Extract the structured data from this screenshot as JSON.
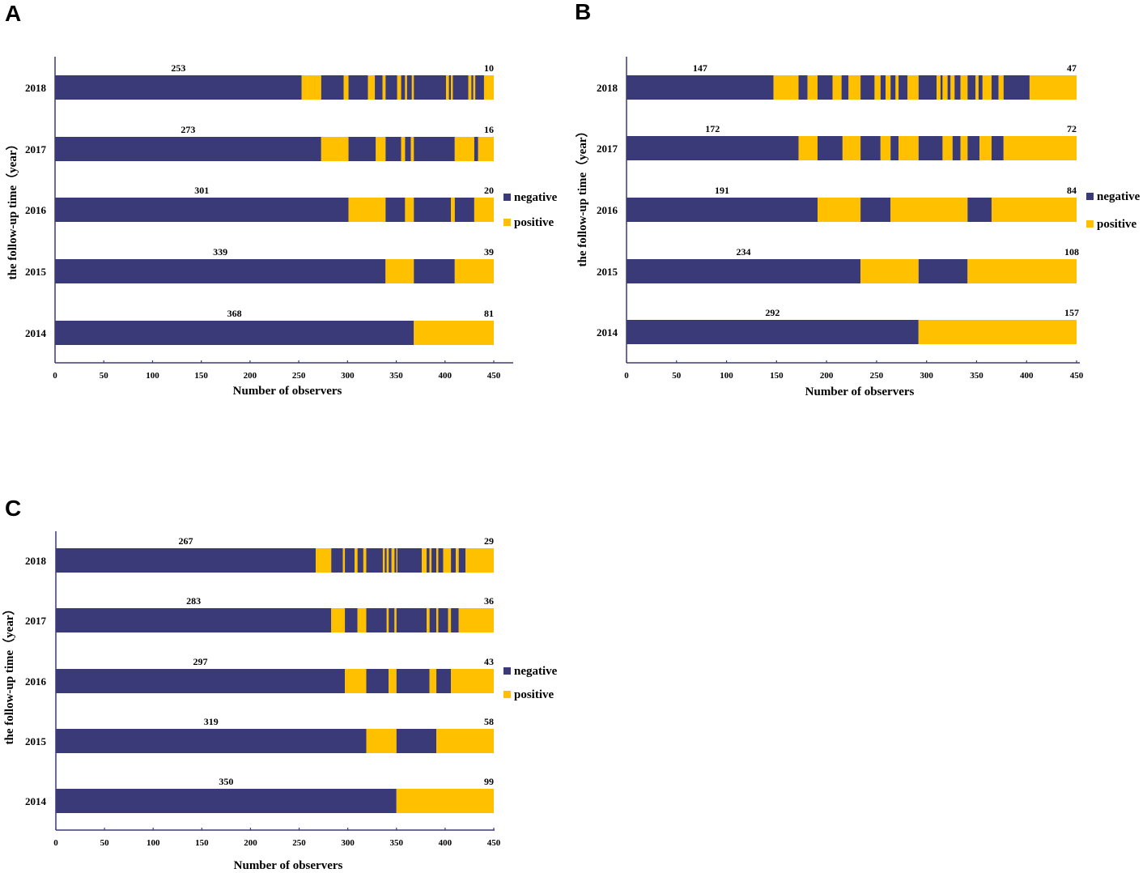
{
  "chart_data": [
    {
      "panel": "A",
      "type": "bar",
      "orientation": "horizontal",
      "stacked": true,
      "xlabel": "Number of observers",
      "ylabel": "the follow-up time（year）",
      "xlim": [
        0,
        450
      ],
      "xticks": [
        0,
        50,
        100,
        150,
        200,
        250,
        300,
        350,
        400,
        450
      ],
      "categories": [
        "2018",
        "2017",
        "2016",
        "2015",
        "2014"
      ],
      "legend": [
        "negative",
        "positive"
      ],
      "legend_position": "right",
      "colors": {
        "negative": "#3b3a78",
        "positive": "#ffc000"
      },
      "rows": [
        {
          "year": "2018",
          "negative_label": "253",
          "positive_label": "10",
          "segments": [
            [
              0,
              253,
              "neg"
            ],
            [
              253,
              273,
              "pos"
            ],
            [
              273,
              296,
              "neg"
            ],
            [
              296,
              301,
              "pos"
            ],
            [
              301,
              321,
              "neg"
            ],
            [
              321,
              328,
              "pos"
            ],
            [
              328,
              336,
              "neg"
            ],
            [
              336,
              339,
              "pos"
            ],
            [
              339,
              351,
              "neg"
            ],
            [
              351,
              355,
              "pos"
            ],
            [
              355,
              359,
              "neg"
            ],
            [
              359,
              361,
              "pos"
            ],
            [
              361,
              366,
              "neg"
            ],
            [
              366,
              368,
              "pos"
            ],
            [
              368,
              401,
              "neg"
            ],
            [
              401,
              404,
              "pos"
            ],
            [
              404,
              406,
              "neg"
            ],
            [
              406,
              408,
              "pos"
            ],
            [
              408,
              424,
              "neg"
            ],
            [
              424,
              427,
              "pos"
            ],
            [
              427,
              429,
              "neg"
            ],
            [
              429,
              431,
              "pos"
            ],
            [
              431,
              440,
              "neg"
            ],
            [
              440,
              450,
              "pos"
            ]
          ]
        },
        {
          "year": "2017",
          "negative_label": "273",
          "positive_label": "16",
          "segments": [
            [
              0,
              273,
              "neg"
            ],
            [
              273,
              301,
              "pos"
            ],
            [
              301,
              329,
              "neg"
            ],
            [
              329,
              339,
              "pos"
            ],
            [
              339,
              355,
              "neg"
            ],
            [
              355,
              359,
              "pos"
            ],
            [
              359,
              365,
              "neg"
            ],
            [
              365,
              368,
              "pos"
            ],
            [
              368,
              410,
              "neg"
            ],
            [
              410,
              430,
              "pos"
            ],
            [
              430,
              434,
              "neg"
            ],
            [
              434,
              450,
              "pos"
            ]
          ]
        },
        {
          "year": "2016",
          "negative_label": "301",
          "positive_label": "20",
          "segments": [
            [
              0,
              301,
              "neg"
            ],
            [
              301,
              339,
              "pos"
            ],
            [
              339,
              359,
              "neg"
            ],
            [
              359,
              368,
              "pos"
            ],
            [
              368,
              406,
              "neg"
            ],
            [
              406,
              410,
              "pos"
            ],
            [
              410,
              430,
              "neg"
            ],
            [
              430,
              450,
              "pos"
            ]
          ]
        },
        {
          "year": "2015",
          "negative_label": "339",
          "positive_label": "39",
          "segments": [
            [
              0,
              339,
              "neg"
            ],
            [
              339,
              368,
              "pos"
            ],
            [
              368,
              410,
              "neg"
            ],
            [
              410,
              450,
              "pos"
            ]
          ]
        },
        {
          "year": "2014",
          "negative_label": "368",
          "positive_label": "81",
          "segments": [
            [
              0,
              368,
              "neg"
            ],
            [
              368,
              450,
              "pos"
            ]
          ]
        }
      ]
    },
    {
      "panel": "B",
      "type": "bar",
      "orientation": "horizontal",
      "stacked": true,
      "xlabel": "Number of observers",
      "ylabel": "the follow-up time（year）",
      "xlim": [
        0,
        450
      ],
      "xticks": [
        0,
        50,
        100,
        150,
        200,
        250,
        300,
        350,
        400,
        450
      ],
      "categories": [
        "2018",
        "2017",
        "2016",
        "2015",
        "2014"
      ],
      "legend": [
        "negative",
        "positive"
      ],
      "legend_position": "right",
      "colors": {
        "negative": "#3b3a78",
        "positive": "#ffc000"
      },
      "rows": [
        {
          "year": "2018",
          "negative_label": "147",
          "positive_label": "47",
          "segments": [
            [
              0,
              147,
              "neg"
            ],
            [
              147,
              172,
              "pos"
            ],
            [
              172,
              181,
              "neg"
            ],
            [
              181,
              191,
              "pos"
            ],
            [
              191,
              206,
              "neg"
            ],
            [
              206,
              215,
              "pos"
            ],
            [
              215,
              222,
              "neg"
            ],
            [
              222,
              234,
              "pos"
            ],
            [
              234,
              248,
              "neg"
            ],
            [
              248,
              254,
              "pos"
            ],
            [
              254,
              259,
              "neg"
            ],
            [
              259,
              264,
              "pos"
            ],
            [
              264,
              269,
              "neg"
            ],
            [
              269,
              272,
              "pos"
            ],
            [
              272,
              281,
              "neg"
            ],
            [
              281,
              292,
              "pos"
            ],
            [
              292,
              310,
              "neg"
            ],
            [
              310,
              314,
              "pos"
            ],
            [
              314,
              316,
              "neg"
            ],
            [
              316,
              321,
              "pos"
            ],
            [
              321,
              324,
              "neg"
            ],
            [
              324,
              328,
              "pos"
            ],
            [
              328,
              334,
              "neg"
            ],
            [
              334,
              341,
              "pos"
            ],
            [
              341,
              349,
              "neg"
            ],
            [
              349,
              352,
              "pos"
            ],
            [
              352,
              356,
              "neg"
            ],
            [
              356,
              365,
              "pos"
            ],
            [
              365,
              372,
              "neg"
            ],
            [
              372,
              377,
              "pos"
            ],
            [
              377,
              403,
              "neg"
            ],
            [
              403,
              450,
              "pos"
            ]
          ]
        },
        {
          "year": "2017",
          "negative_label": "172",
          "positive_label": "72",
          "segments": [
            [
              0,
              172,
              "neg"
            ],
            [
              172,
              191,
              "pos"
            ],
            [
              191,
              216,
              "neg"
            ],
            [
              216,
              234,
              "pos"
            ],
            [
              234,
              254,
              "neg"
            ],
            [
              254,
              264,
              "pos"
            ],
            [
              264,
              272,
              "neg"
            ],
            [
              272,
              292,
              "pos"
            ],
            [
              292,
              316,
              "neg"
            ],
            [
              316,
              326,
              "pos"
            ],
            [
              326,
              334,
              "neg"
            ],
            [
              334,
              341,
              "pos"
            ],
            [
              341,
              353,
              "neg"
            ],
            [
              353,
              365,
              "pos"
            ],
            [
              365,
              377,
              "neg"
            ],
            [
              377,
              450,
              "pos"
            ]
          ]
        },
        {
          "year": "2016",
          "negative_label": "191",
          "positive_label": "84",
          "segments": [
            [
              0,
              191,
              "neg"
            ],
            [
              191,
              234,
              "pos"
            ],
            [
              234,
              264,
              "neg"
            ],
            [
              264,
              341,
              "pos"
            ],
            [
              341,
              365,
              "neg"
            ],
            [
              365,
              450,
              "pos"
            ]
          ]
        },
        {
          "year": "2015",
          "negative_label": "234",
          "positive_label": "108",
          "segments": [
            [
              0,
              234,
              "neg"
            ],
            [
              234,
              292,
              "pos"
            ],
            [
              292,
              341,
              "neg"
            ],
            [
              341,
              450,
              "pos"
            ]
          ]
        },
        {
          "year": "2014",
          "negative_label": "292",
          "positive_label": "157",
          "segments": [
            [
              0,
              292,
              "neg"
            ],
            [
              292,
              450,
              "pos"
            ]
          ]
        }
      ]
    },
    {
      "panel": "C",
      "type": "bar",
      "orientation": "horizontal",
      "stacked": true,
      "xlabel": "Number of observers",
      "ylabel": "the follow-up time（year）",
      "xlim": [
        0,
        450
      ],
      "xticks": [
        0,
        50,
        100,
        150,
        200,
        250,
        300,
        350,
        400,
        450
      ],
      "categories": [
        "2018",
        "2017",
        "2016",
        "2015",
        "2014"
      ],
      "legend": [
        "negative",
        "positive"
      ],
      "legend_position": "right",
      "colors": {
        "negative": "#3b3a78",
        "positive": "#ffc000"
      },
      "rows": [
        {
          "year": "2018",
          "negative_label": "267",
          "positive_label": "29",
          "segments": [
            [
              0,
              267,
              "neg"
            ],
            [
              267,
              283,
              "pos"
            ],
            [
              283,
              295,
              "neg"
            ],
            [
              295,
              297,
              "pos"
            ],
            [
              297,
              307,
              "neg"
            ],
            [
              307,
              310,
              "pos"
            ],
            [
              310,
              316,
              "neg"
            ],
            [
              316,
              319,
              "pos"
            ],
            [
              319,
              336,
              "neg"
            ],
            [
              336,
              338,
              "pos"
            ],
            [
              338,
              340,
              "neg"
            ],
            [
              340,
              342,
              "pos"
            ],
            [
              342,
              345,
              "neg"
            ],
            [
              345,
              348,
              "pos"
            ],
            [
              348,
              350,
              "neg"
            ],
            [
              350,
              351,
              "pos"
            ],
            [
              351,
              376,
              "neg"
            ],
            [
              376,
              381,
              "pos"
            ],
            [
              381,
              384,
              "neg"
            ],
            [
              384,
              386,
              "pos"
            ],
            [
              386,
              391,
              "neg"
            ],
            [
              391,
              393,
              "pos"
            ],
            [
              393,
              398,
              "neg"
            ],
            [
              398,
              406,
              "pos"
            ],
            [
              406,
              411,
              "neg"
            ],
            [
              411,
              414,
              "pos"
            ],
            [
              414,
              421,
              "neg"
            ],
            [
              421,
              450,
              "pos"
            ]
          ]
        },
        {
          "year": "2017",
          "negative_label": "283",
          "positive_label": "36",
          "segments": [
            [
              0,
              283,
              "neg"
            ],
            [
              283,
              297,
              "pos"
            ],
            [
              297,
              310,
              "neg"
            ],
            [
              310,
              319,
              "pos"
            ],
            [
              319,
              340,
              "neg"
            ],
            [
              340,
              342,
              "pos"
            ],
            [
              342,
              348,
              "neg"
            ],
            [
              348,
              350,
              "pos"
            ],
            [
              350,
              381,
              "neg"
            ],
            [
              381,
              384,
              "pos"
            ],
            [
              384,
              391,
              "neg"
            ],
            [
              391,
              393,
              "pos"
            ],
            [
              393,
              403,
              "neg"
            ],
            [
              403,
              406,
              "pos"
            ],
            [
              406,
              414,
              "neg"
            ],
            [
              414,
              450,
              "pos"
            ]
          ]
        },
        {
          "year": "2016",
          "negative_label": "297",
          "positive_label": "43",
          "segments": [
            [
              0,
              297,
              "neg"
            ],
            [
              297,
              319,
              "pos"
            ],
            [
              319,
              342,
              "neg"
            ],
            [
              342,
              350,
              "pos"
            ],
            [
              350,
              384,
              "neg"
            ],
            [
              384,
              391,
              "pos"
            ],
            [
              391,
              406,
              "neg"
            ],
            [
              406,
              450,
              "pos"
            ]
          ]
        },
        {
          "year": "2015",
          "negative_label": "319",
          "positive_label": "58",
          "segments": [
            [
              0,
              319,
              "neg"
            ],
            [
              319,
              350,
              "pos"
            ],
            [
              350,
              391,
              "neg"
            ],
            [
              391,
              450,
              "pos"
            ]
          ]
        },
        {
          "year": "2014",
          "negative_label": "350",
          "positive_label": "99",
          "segments": [
            [
              0,
              350,
              "neg"
            ],
            [
              350,
              450,
              "pos"
            ]
          ]
        }
      ]
    }
  ]
}
